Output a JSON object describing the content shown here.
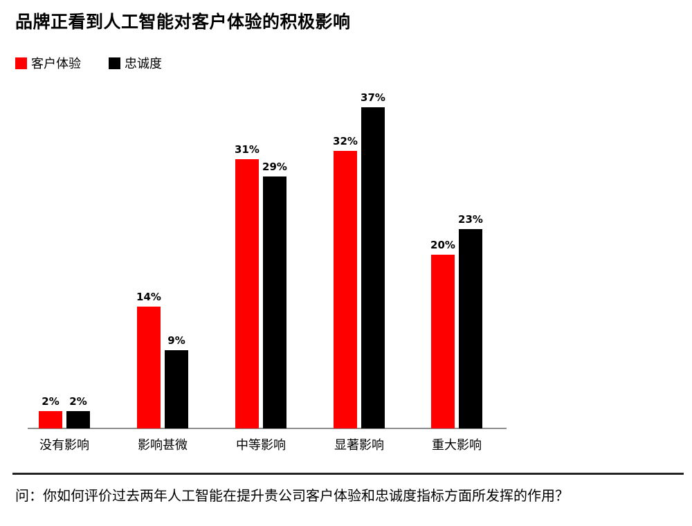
{
  "header": {
    "title": "品牌正看到人工智能对客户体验的积极影响"
  },
  "legend": [
    {
      "label": "客户体验",
      "color": "#ff0000"
    },
    {
      "label": "忠诚度",
      "color": "#000000"
    }
  ],
  "footer": {
    "question": "问：你如何评价过去两年人工智能在提升贵公司客户体验和忠诚度指标方面所发挥的作用？"
  },
  "labels": {
    "c0": "没有影响",
    "c1": "影响甚微",
    "c2": "中等影响",
    "c3": "显著影响",
    "c4": "重大影响",
    "v00": "2%",
    "v01": "2%",
    "v10": "14%",
    "v11": "9%",
    "v20": "31%",
    "v21": "29%",
    "v30": "32%",
    "v31": "37%",
    "v40": "20%",
    "v41": "23%"
  },
  "chart_data": {
    "type": "bar",
    "title": "品牌正看到人工智能对客户体验的积极影响",
    "categories": [
      "没有影响",
      "影响甚微",
      "中等影响",
      "显著影响",
      "重大影响"
    ],
    "series": [
      {
        "name": "客户体验",
        "color": "#ff0000",
        "values": [
          2,
          14,
          31,
          32,
          20
        ]
      },
      {
        "name": "忠诚度",
        "color": "#000000",
        "values": [
          2,
          9,
          29,
          37,
          23
        ]
      }
    ],
    "value_format": "{v}%",
    "xlabel": "",
    "ylabel": "",
    "ylim": [
      0,
      40
    ],
    "grid": false,
    "y_axis_visible": false,
    "legend_position": "top-left",
    "note": "问：你如何评价过去两年人工智能在提升贵公司客户体验和忠诚度指标方面所发挥的作用？"
  }
}
